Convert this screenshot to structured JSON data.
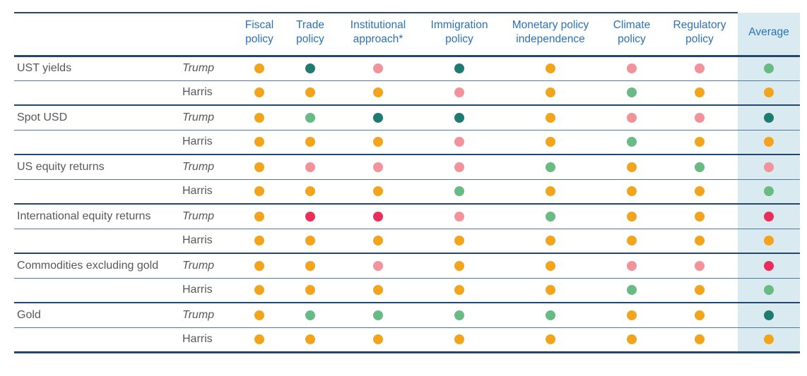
{
  "chart_data": {
    "type": "table",
    "description": "Dot-rating matrix of policy impacts by candidate across asset classes",
    "columns": [
      "Fiscal policy",
      "Trade policy",
      "Institutional approach*",
      "Immigration policy",
      "Monetary policy independence",
      "Climate policy",
      "Regulatory policy",
      "Average"
    ],
    "color_legend": {
      "amber": "#F2A51C",
      "teal": "#1F7B72",
      "pink": "#F2929B",
      "green": "#68BB84",
      "red": "#EA2E5B"
    },
    "row_groups": [
      {
        "label": "UST yields",
        "rows": [
          {
            "candidate": "Trump",
            "ratings": [
              "amber",
              "teal",
              "pink",
              "teal",
              "amber",
              "pink",
              "pink"
            ],
            "average": "green"
          },
          {
            "candidate": "Harris",
            "ratings": [
              "amber",
              "amber",
              "amber",
              "pink",
              "amber",
              "green",
              "amber"
            ],
            "average": "amber"
          }
        ]
      },
      {
        "label": "Spot USD",
        "rows": [
          {
            "candidate": "Trump",
            "ratings": [
              "amber",
              "green",
              "teal",
              "teal",
              "amber",
              "pink",
              "pink"
            ],
            "average": "teal"
          },
          {
            "candidate": "Harris",
            "ratings": [
              "amber",
              "amber",
              "amber",
              "pink",
              "amber",
              "green",
              "amber"
            ],
            "average": "amber"
          }
        ]
      },
      {
        "label": "US equity returns",
        "rows": [
          {
            "candidate": "Trump",
            "ratings": [
              "amber",
              "pink",
              "pink",
              "pink",
              "green",
              "amber",
              "green"
            ],
            "average": "pink"
          },
          {
            "candidate": "Harris",
            "ratings": [
              "amber",
              "amber",
              "amber",
              "green",
              "amber",
              "amber",
              "amber"
            ],
            "average": "green"
          }
        ]
      },
      {
        "label": "International equity returns",
        "rows": [
          {
            "candidate": "Trump",
            "ratings": [
              "amber",
              "red",
              "red",
              "pink",
              "green",
              "amber",
              "amber"
            ],
            "average": "red"
          },
          {
            "candidate": "Harris",
            "ratings": [
              "amber",
              "amber",
              "amber",
              "amber",
              "amber",
              "amber",
              "amber"
            ],
            "average": "amber"
          }
        ]
      },
      {
        "label": "Commodities excluding gold",
        "rows": [
          {
            "candidate": "Trump",
            "ratings": [
              "amber",
              "amber",
              "pink",
              "amber",
              "amber",
              "pink",
              "pink"
            ],
            "average": "red"
          },
          {
            "candidate": "Harris",
            "ratings": [
              "amber",
              "amber",
              "amber",
              "amber",
              "amber",
              "green",
              "amber"
            ],
            "average": "green"
          }
        ]
      },
      {
        "label": "Gold",
        "rows": [
          {
            "candidate": "Trump",
            "ratings": [
              "amber",
              "green",
              "green",
              "green",
              "green",
              "amber",
              "amber"
            ],
            "average": "teal"
          },
          {
            "candidate": "Harris",
            "ratings": [
              "amber",
              "amber",
              "amber",
              "amber",
              "amber",
              "amber",
              "amber"
            ],
            "average": "amber"
          }
        ]
      }
    ],
    "style": {
      "average_column_bg": "#D9EBF1",
      "header_text_color": "#2A72B5",
      "label_text_color": "#57585A",
      "heavy_rule_color": "#24476B",
      "light_rule_color": "#50799F"
    }
  }
}
